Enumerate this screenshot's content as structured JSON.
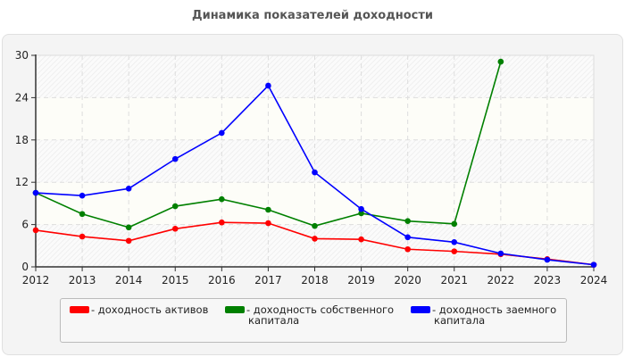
{
  "chart_data": {
    "type": "line",
    "title": "Динамика показателей доходности",
    "x": [
      2012,
      2013,
      2014,
      2015,
      2016,
      2017,
      2018,
      2019,
      2020,
      2021,
      2022,
      2023,
      2024
    ],
    "xlim": [
      2012,
      2024
    ],
    "ylim": [
      0,
      30
    ],
    "yticks": [
      0,
      6,
      12,
      18,
      24,
      30
    ],
    "grid": true,
    "legend_position": "bottom",
    "series": [
      {
        "name": "- доходность активов",
        "color": "#ff0000",
        "values": [
          5.2,
          4.3,
          3.7,
          5.4,
          6.3,
          6.2,
          4.0,
          3.9,
          2.5,
          2.2,
          1.8,
          1.1,
          0.3
        ]
      },
      {
        "name": "- доходность собственного капитала",
        "color": "#008000",
        "values": [
          10.5,
          7.5,
          5.6,
          8.6,
          9.6,
          8.1,
          5.8,
          7.6,
          6.5,
          6.1,
          29.1,
          null,
          null
        ]
      },
      {
        "name": "- доходность заемного капитала",
        "color": "#0000ff",
        "values": [
          10.5,
          10.1,
          11.1,
          15.3,
          19.0,
          25.7,
          13.4,
          8.2,
          4.2,
          3.5,
          1.9,
          1.0,
          0.3
        ]
      }
    ]
  }
}
